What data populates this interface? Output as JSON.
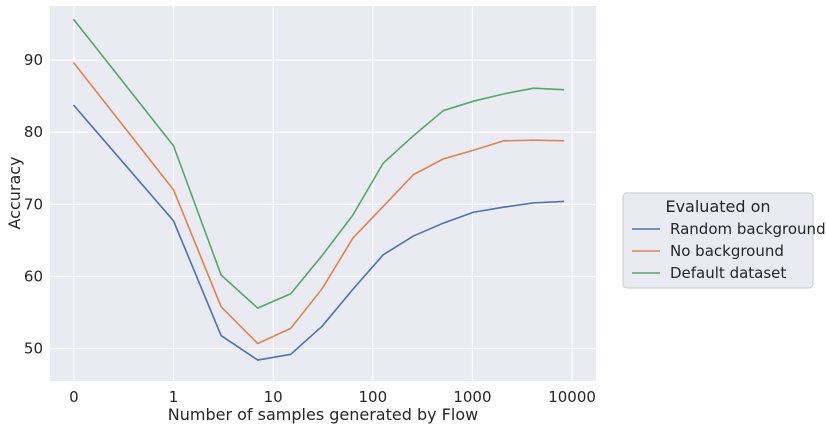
{
  "chart_data": {
    "type": "line",
    "title": "",
    "xlabel": "Number of samples generated by Flow",
    "ylabel": "Accuracy",
    "x": [
      0,
      1,
      3,
      7,
      15,
      31,
      63,
      127,
      255,
      511,
      1023,
      2047,
      4095,
      8191
    ],
    "x_scale": "symlog",
    "x_ticks": [
      0,
      1,
      10,
      100,
      1000,
      10000
    ],
    "x_tick_labels": [
      "0",
      "1",
      "10",
      "100",
      "1000",
      "10000"
    ],
    "y_ticks": [
      50,
      60,
      70,
      80,
      90
    ],
    "y_tick_labels": [
      "50",
      "60",
      "70",
      "80",
      "90"
    ],
    "ylim": [
      45.5,
      97.5
    ],
    "grid": true,
    "legend": {
      "title": "Evaluated on",
      "placement": "center-right outside"
    },
    "series": [
      {
        "name": "Random background",
        "color": "#4c72b0",
        "values": [
          83.7,
          67.7,
          51.8,
          48.4,
          49.2,
          53.1,
          58.2,
          63.0,
          65.6,
          67.4,
          68.9,
          69.6,
          70.2,
          70.4
        ]
      },
      {
        "name": "No background",
        "color": "#dd8452",
        "values": [
          89.6,
          72.0,
          55.8,
          50.7,
          52.8,
          58.3,
          65.3,
          69.7,
          74.1,
          76.3,
          77.5,
          78.8,
          78.9,
          78.8
        ]
      },
      {
        "name": "Default dataset",
        "color": "#55a868",
        "values": [
          95.6,
          78.1,
          60.2,
          55.6,
          57.6,
          62.9,
          68.5,
          75.7,
          79.5,
          83.0,
          84.3,
          85.3,
          86.1,
          85.9
        ]
      }
    ]
  }
}
